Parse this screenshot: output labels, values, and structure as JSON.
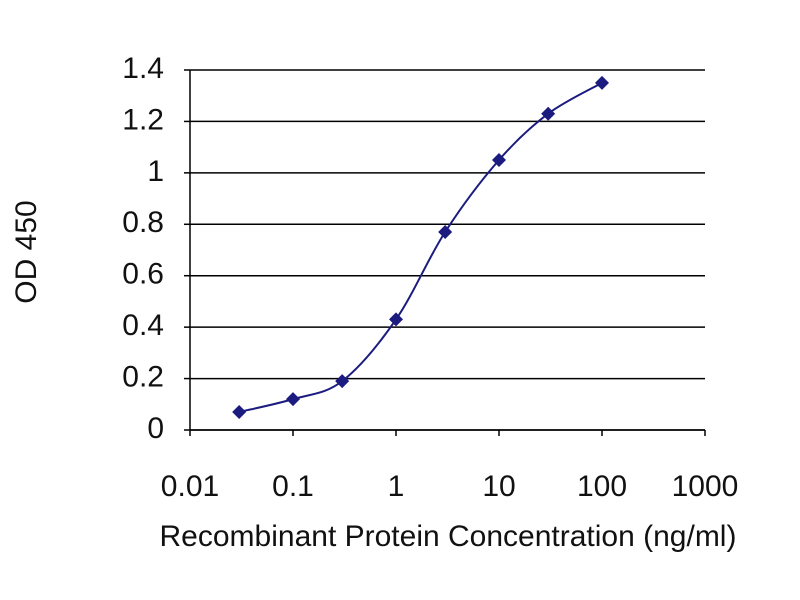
{
  "chart_data": {
    "type": "line",
    "x_label": "Recombinant Protein Concentration (ng/ml)",
    "y_label": "OD 450",
    "x": [
      0.03,
      0.1,
      0.3,
      1,
      3,
      10,
      30,
      100
    ],
    "series": [
      {
        "name": "OD 450",
        "color": "#1c1c80",
        "values": [
          0.07,
          0.12,
          0.19,
          0.43,
          0.77,
          1.05,
          1.23,
          1.35
        ]
      }
    ],
    "xscale": "log",
    "xlim": [
      0.01,
      1000
    ],
    "xticks": [
      0.01,
      0.1,
      1,
      10,
      100,
      1000
    ],
    "ylim": [
      0,
      1.4
    ],
    "yticks": [
      0,
      0.2,
      0.4,
      0.6,
      0.8,
      1,
      1.2,
      1.4
    ],
    "grid": true,
    "legend": false
  }
}
